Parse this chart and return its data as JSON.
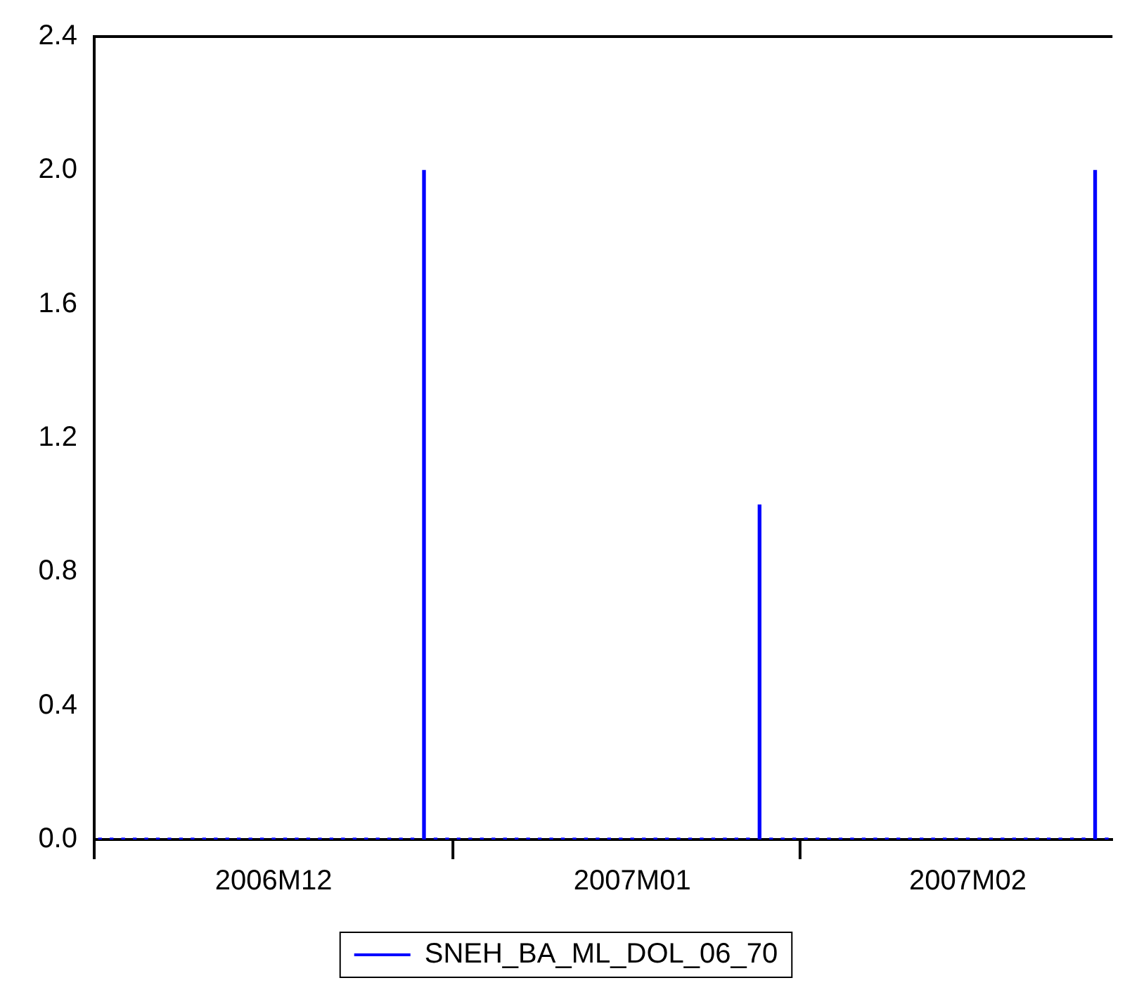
{
  "chart_data": {
    "type": "bar",
    "categories": [
      null,
      null,
      null,
      null,
      null,
      null,
      null,
      null,
      null,
      null,
      null,
      null,
      null,
      null,
      null,
      "2006M12",
      null,
      null,
      null,
      null,
      null,
      null,
      null,
      null,
      null,
      null,
      null,
      null,
      null,
      null,
      null,
      null,
      null,
      null,
      null,
      null,
      null,
      null,
      null,
      null,
      null,
      null,
      null,
      null,
      null,
      null,
      "2007M01",
      null,
      null,
      null,
      null,
      null,
      null,
      null,
      null,
      null,
      null,
      null,
      null,
      null,
      null,
      null,
      null,
      null,
      null,
      null,
      null,
      null,
      null,
      null,
      null,
      null,
      null,
      null,
      null,
      "2007M02",
      null,
      null,
      null,
      null,
      null,
      null,
      null,
      null,
      null,
      null,
      null,
      null
    ],
    "series": [
      {
        "name": "SNEH_BA_ML_DOL_06_70",
        "color": "#0000ff",
        "values": [
          0,
          0,
          0,
          0,
          0,
          0,
          0,
          0,
          0,
          0,
          0,
          0,
          0,
          0,
          0,
          0,
          0,
          0,
          0,
          0,
          0,
          0,
          0,
          0,
          0,
          0,
          0,
          0,
          2,
          0,
          0,
          0,
          0,
          0,
          0,
          0,
          0,
          0,
          0,
          0,
          0,
          0,
          0,
          0,
          0,
          0,
          0,
          0,
          0,
          0,
          0,
          0,
          0,
          0,
          0,
          0,
          0,
          1,
          0,
          0,
          0,
          0,
          0,
          0,
          0,
          0,
          0,
          0,
          0,
          0,
          0,
          0,
          0,
          0,
          0,
          0,
          0,
          0,
          0,
          0,
          0,
          0,
          0,
          0,
          0,
          0,
          2,
          0
        ]
      }
    ],
    "ylim": [
      0,
      2.4
    ],
    "yticks": [
      {
        "value": 0,
        "label": "0.0"
      },
      {
        "value": 0.4,
        "label": "0.4"
      },
      {
        "value": 0.8,
        "label": "0.8"
      },
      {
        "value": 1.2,
        "label": "1.2"
      },
      {
        "value": 1.6,
        "label": "1.6"
      },
      {
        "value": 2,
        "label": "2.0"
      },
      {
        "value": 2.4,
        "label": "2.4"
      }
    ],
    "legend": "bottom"
  }
}
